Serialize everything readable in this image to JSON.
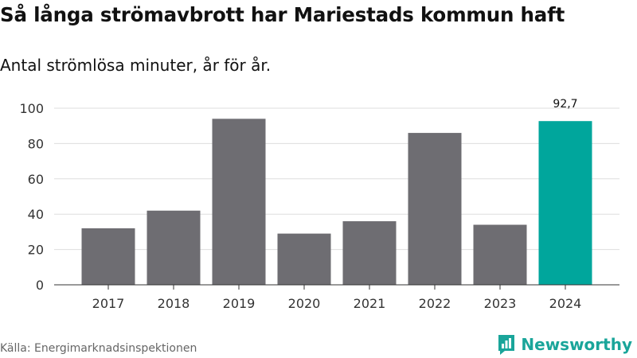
{
  "header": {
    "title": "Så långa strömavbrott har Mariestads kommun haft",
    "subtitle": "Antal strömlösa minuter, år för år."
  },
  "footer": {
    "source": "Källa: Energimarknadsinspektionen",
    "brand": "Newsworthy",
    "brand_icon": "bar-chart-speech-bubble-icon"
  },
  "colors": {
    "bar": "#6e6d72",
    "highlight": "#00a69c",
    "brand": "#1aa59a",
    "grid": "#dddddd",
    "axis": "#333333"
  },
  "chart_data": {
    "type": "bar",
    "title": "Så långa strömavbrott har Mariestads kommun haft",
    "subtitle": "Antal strömlösa minuter, år för år.",
    "categories": [
      "2017",
      "2018",
      "2019",
      "2020",
      "2021",
      "2022",
      "2023",
      "2024"
    ],
    "values": [
      32,
      42,
      94,
      29,
      36,
      86,
      34,
      92.7
    ],
    "highlight_index": 7,
    "data_labels": [
      {
        "index": 7,
        "text": "92,7"
      }
    ],
    "ylim": [
      0,
      100
    ],
    "yticks": [
      0,
      20,
      40,
      60,
      80,
      100
    ],
    "xlabel": "",
    "ylabel": "",
    "grid": true
  }
}
